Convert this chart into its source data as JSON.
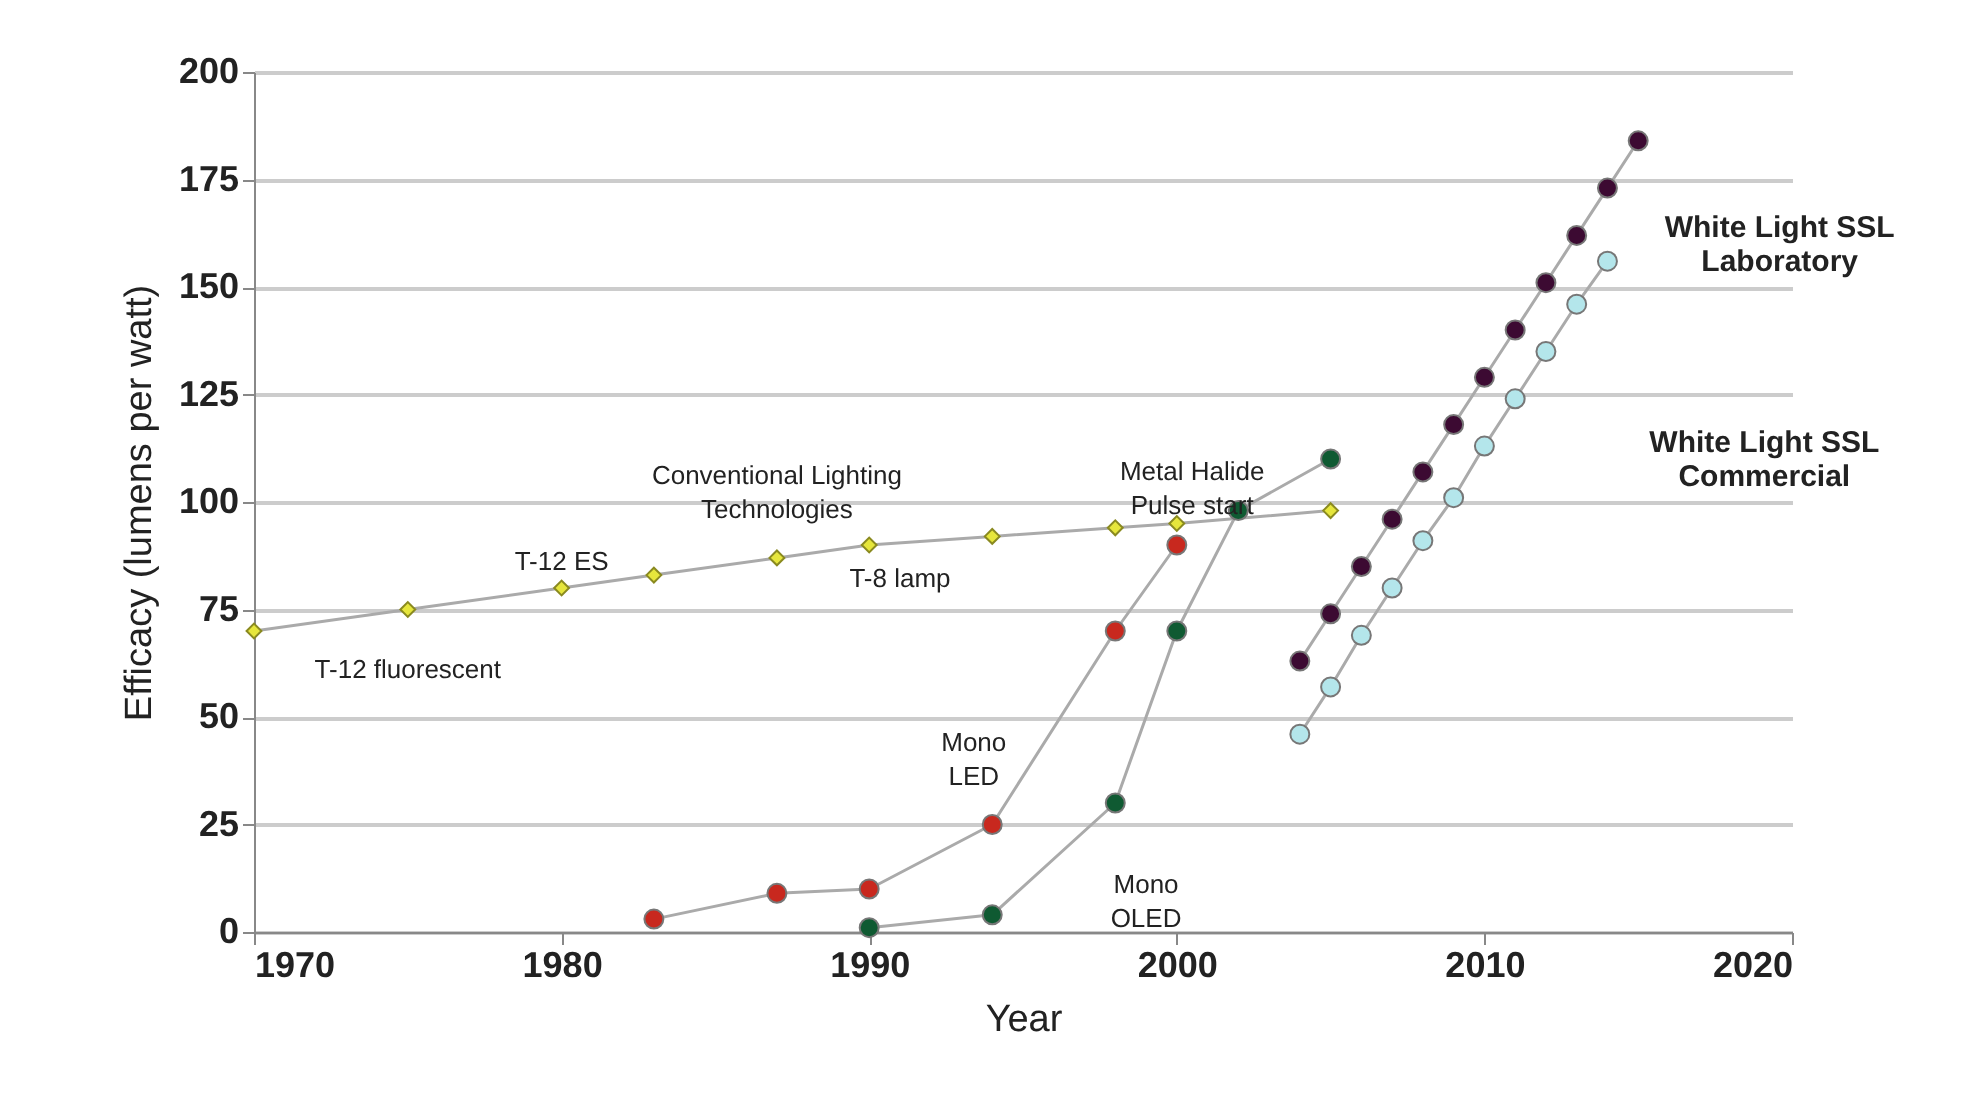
{
  "chart_data": {
    "type": "line",
    "xlabel": "Year",
    "ylabel": "Efficacy (lumens per watt)",
    "xlim": [
      1970,
      2020
    ],
    "xticks": [
      1970,
      1980,
      1990,
      2000,
      2010,
      2020
    ],
    "ylim": [
      0,
      200
    ],
    "yticks": [
      0,
      25,
      50,
      75,
      100,
      125,
      150,
      175,
      200
    ],
    "grid": "y",
    "series": [
      {
        "color": "#e6e63c",
        "marker": "diamond",
        "x": [
          1970,
          1975,
          1980,
          1983,
          1987,
          1990,
          1994,
          1998,
          2000,
          2005
        ],
        "values": [
          70,
          75,
          80,
          83,
          87,
          90,
          92,
          94,
          95,
          98
        ]
      },
      {
        "color": "#c8281e",
        "marker": "circle",
        "x": [
          1983,
          1987,
          1990,
          1994,
          1998,
          2000
        ],
        "values": [
          3,
          9,
          10,
          25,
          70,
          90
        ]
      },
      {
        "color": "#0f5a32",
        "marker": "circle",
        "x": [
          1990,
          1994,
          1998,
          2000,
          2002,
          2005
        ],
        "values": [
          1,
          4,
          30,
          70,
          98,
          110
        ]
      },
      {
        "color": "#3c0a32",
        "marker": "circle",
        "x": [
          2004,
          2005,
          2006,
          2007,
          2008,
          2009,
          2010,
          2011,
          2012,
          2013,
          2014,
          2015
        ],
        "values": [
          63,
          74,
          85,
          96,
          107,
          118,
          129,
          140,
          151,
          162,
          173,
          184
        ]
      },
      {
        "color": "#b4e6eb",
        "marker": "circle",
        "x": [
          2004,
          2005,
          2006,
          2007,
          2008,
          2009,
          2010,
          2011,
          2012,
          2013,
          2014
        ],
        "values": [
          46,
          57,
          69,
          80,
          91,
          101,
          113,
          124,
          135,
          146,
          156
        ]
      }
    ],
    "annotations": [
      "Conventional Lighting\nTechnologies",
      "T-12 ES",
      "T-8 lamp",
      "T-12 fluorescent",
      "Metal Halide\nPulse start",
      "Mono\nLED",
      "Mono\nOLED",
      "White Light SSL\nLaboratory",
      "White Light SSL\nCommercial"
    ]
  }
}
